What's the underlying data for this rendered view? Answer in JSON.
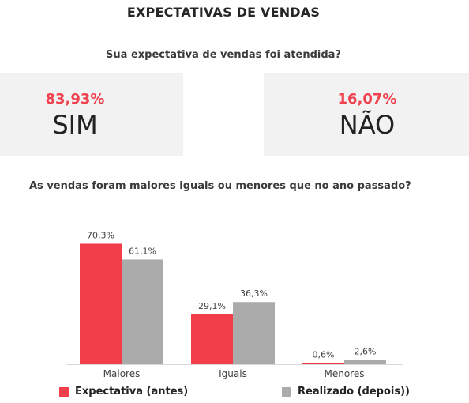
{
  "title": "EXPECTATIVAS DE VENDAS",
  "question1": "Sua expectativa de vendas foi atendida?",
  "cards": [
    {
      "percent": "83,93%",
      "answer": "SIM"
    },
    {
      "percent": "16,07%",
      "answer": "NÃO"
    }
  ],
  "accent_color": "#f0414f",
  "question2": "As vendas foram maiores iguais ou menores que no ano passado?",
  "chart_data": {
    "type": "bar",
    "categories": [
      "Maiores",
      "Iguais",
      "Menores"
    ],
    "series": [
      {
        "name": "Expectativa (antes)",
        "values": [
          70.3,
          29.1,
          0.6
        ],
        "labels": [
          "70,3%",
          "29,1%",
          "0,6%"
        ],
        "color": "#f23d4b"
      },
      {
        "name": "Realizado (depois))",
        "values": [
          61.1,
          36.3,
          2.6
        ],
        "labels": [
          "61,1%",
          "36,3%",
          "2,6%"
        ],
        "color": "#ababab"
      }
    ],
    "ylim": [
      0,
      80
    ],
    "grid": false,
    "legend": "bottom"
  }
}
